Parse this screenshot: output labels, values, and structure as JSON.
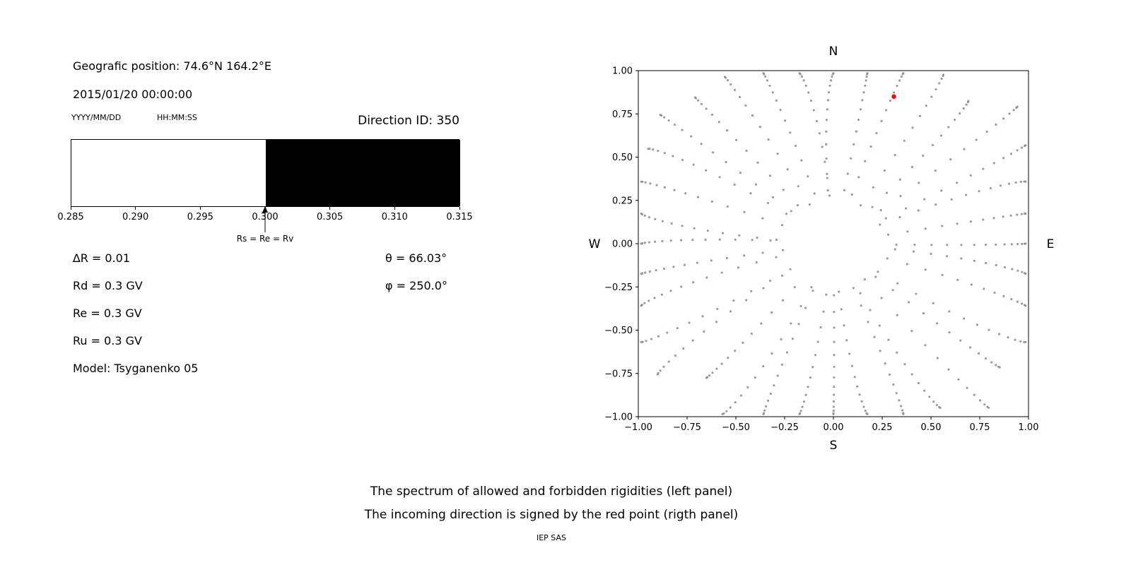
{
  "left_panel": {
    "position": "Geografic position: 74.6°N 164.2°E",
    "datetime": "2015/01/20 00:00:00",
    "date_format_label": "YYYY/MM/DD",
    "time_format_label": "HH:MM:SS",
    "direction_id_label": "Direction ID: 350",
    "params_left": [
      "∆R = 0.01",
      "Rd = 0.3 GV",
      "Re = 0.3 GV",
      "Ru = 0.3 GV",
      "Model: Tsyganenko 05"
    ],
    "params_right": [
      "θ = 66.03°",
      "φ = 250.0°"
    ]
  },
  "captions": {
    "line1": "The spectrum of allowed and forbidden rigidities (left panel)",
    "line2": "The incoming direction is signed by the red point (rigth panel)",
    "credit": "IEP SAS"
  },
  "chart_data": [
    {
      "type": "area",
      "title": "",
      "x_range": [
        0.285,
        0.315
      ],
      "x_tick_values": [
        0.285,
        0.29,
        0.295,
        0.3,
        0.305,
        0.31,
        0.315
      ],
      "x_tick_labels": [
        "0.285",
        "0.290",
        "0.295",
        "0.300",
        "0.305",
        "0.310",
        "0.315"
      ],
      "regions": [
        {
          "name": "allowed",
          "from": 0.285,
          "to": 0.3,
          "fill": "#ffffff"
        },
        {
          "name": "forbidden",
          "from": 0.3,
          "to": 0.315,
          "fill": "#000000"
        }
      ],
      "annotation": {
        "text": "Rs = Re = Rv",
        "x": 0.3
      }
    },
    {
      "type": "scatter",
      "title": "",
      "xlim": [
        -1,
        1
      ],
      "ylim": [
        -1,
        1
      ],
      "x_tick_values": [
        -1,
        -0.75,
        -0.5,
        -0.25,
        0,
        0.25,
        0.5,
        0.75,
        1
      ],
      "x_tick_labels": [
        "−1.00",
        "−0.75",
        "−0.50",
        "−0.25",
        "0.00",
        "0.25",
        "0.50",
        "0.75",
        "1.00"
      ],
      "y_tick_values": [
        1,
        0.75,
        0.5,
        0.25,
        0,
        -0.25,
        -0.5,
        -0.75,
        -1
      ],
      "y_tick_labels": [
        "1.00",
        "0.75",
        "0.50",
        "0.25",
        "0.00",
        "−0.25",
        "−0.50",
        "−0.75",
        "−1.00"
      ],
      "cardinal_labels": {
        "top": "N",
        "bottom": "S",
        "left": "W",
        "right": "E"
      },
      "point_color": "#8c8c8c",
      "red_point": {
        "x": 0.31,
        "y": 0.85,
        "color": "#ff0000"
      },
      "spokes": {
        "count": 36,
        "angle_step_deg": 10,
        "inner_radius": 0.27,
        "points_per_spoke": 14,
        "outer_extent": "clipped to axes box"
      }
    }
  ]
}
